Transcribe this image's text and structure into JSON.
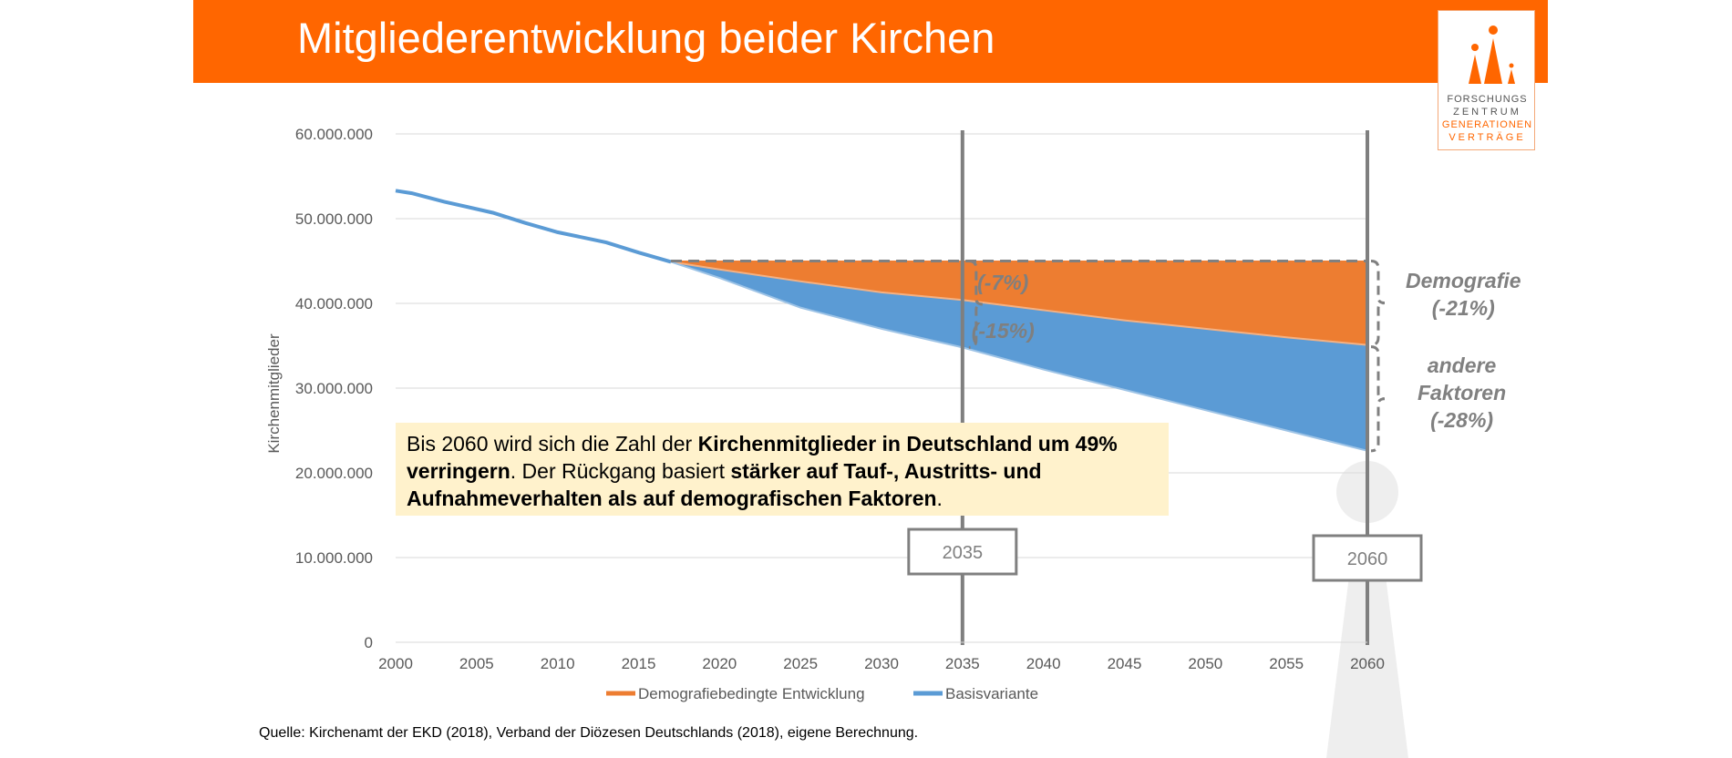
{
  "header": {
    "title": "Mitgliederentwicklung beider Kirchen"
  },
  "logo": {
    "line1": "FORSCHUNGS",
    "line2": "ZENTRUM",
    "line3": "GENERATIONEN",
    "line4": "VERTRÄGE"
  },
  "annotation": {
    "p1": "Bis 2060 wird sich die Zahl der ",
    "b1": "Kirchenmitglieder in Deutschland um 49% verringern",
    "p2": ". Der Rückgang basiert ",
    "b2": "stärker auf Tauf-, Austritts- und Aufnahmeverhalten als auf demografischen Faktoren",
    "p3": "."
  },
  "source": "Quelle: Kirchenamt der EKD (2018), Verband der Diözesen Deutschlands (2018), eigene Berechnung.",
  "side_labels": {
    "demografie_1": "Demografie",
    "demografie_2": "(-21%)",
    "andere_1": "andere",
    "andere_2": "Faktoren",
    "andere_3": "(-28%)"
  },
  "colors": {
    "accent": "#ff6600",
    "orange_series": "#ed7d31",
    "blue_series": "#5b9bd5",
    "grey": "#808080"
  },
  "chart_data": {
    "type": "area",
    "ylabel": "Kirchenmitglieder",
    "xlabel": "",
    "xlim": [
      2000,
      2060
    ],
    "ylim": [
      0,
      60000000
    ],
    "x_ticks": [
      2000,
      2005,
      2010,
      2015,
      2020,
      2025,
      2030,
      2035,
      2040,
      2045,
      2050,
      2055,
      2060
    ],
    "y_ticks": [
      0,
      10000000,
      20000000,
      30000000,
      40000000,
      50000000,
      60000000
    ],
    "y_tick_labels": [
      "0",
      "10.000.000",
      "20.000.000",
      "30.000.000",
      "40.000.000",
      "50.000.000",
      "60.000.000"
    ],
    "grid": true,
    "legend_position": "bottom",
    "series": [
      {
        "name": "Demografiebedingte Entwicklung",
        "color": "#ed7d31",
        "x": [
          2000,
          2001,
          2003,
          2006,
          2008,
          2010,
          2013,
          2015,
          2017,
          2020,
          2025,
          2030,
          2035,
          2040,
          2045,
          2050,
          2055,
          2060
        ],
        "values": [
          53300000,
          53000000,
          52000000,
          50700000,
          49500000,
          48400000,
          47200000,
          46000000,
          44900000,
          44000000,
          42600000,
          41300000,
          40400000,
          39200000,
          38000000,
          37000000,
          36000000,
          35100000
        ]
      },
      {
        "name": "Basisvariante",
        "color": "#5b9bd5",
        "x": [
          2000,
          2001,
          2003,
          2006,
          2008,
          2010,
          2013,
          2015,
          2017,
          2020,
          2025,
          2030,
          2035,
          2040,
          2045,
          2050,
          2055,
          2060
        ],
        "values": [
          53300000,
          53000000,
          52000000,
          50700000,
          49500000,
          48400000,
          47200000,
          46000000,
          44900000,
          43000000,
          39500000,
          37000000,
          34800000,
          32200000,
          29800000,
          27400000,
          25000000,
          22600000
        ]
      }
    ],
    "reference_level": {
      "from": 2017,
      "to": 2060,
      "value": 45000000
    },
    "vertical_markers": [
      {
        "x": 2035,
        "label": "2035"
      },
      {
        "x": 2060,
        "label": "2060"
      }
    ],
    "annotations": [
      {
        "text": "(-7%)",
        "x": 2037.5,
        "y": 42500000
      },
      {
        "text": "(-15%)",
        "x": 2037.5,
        "y": 36800000
      }
    ]
  }
}
